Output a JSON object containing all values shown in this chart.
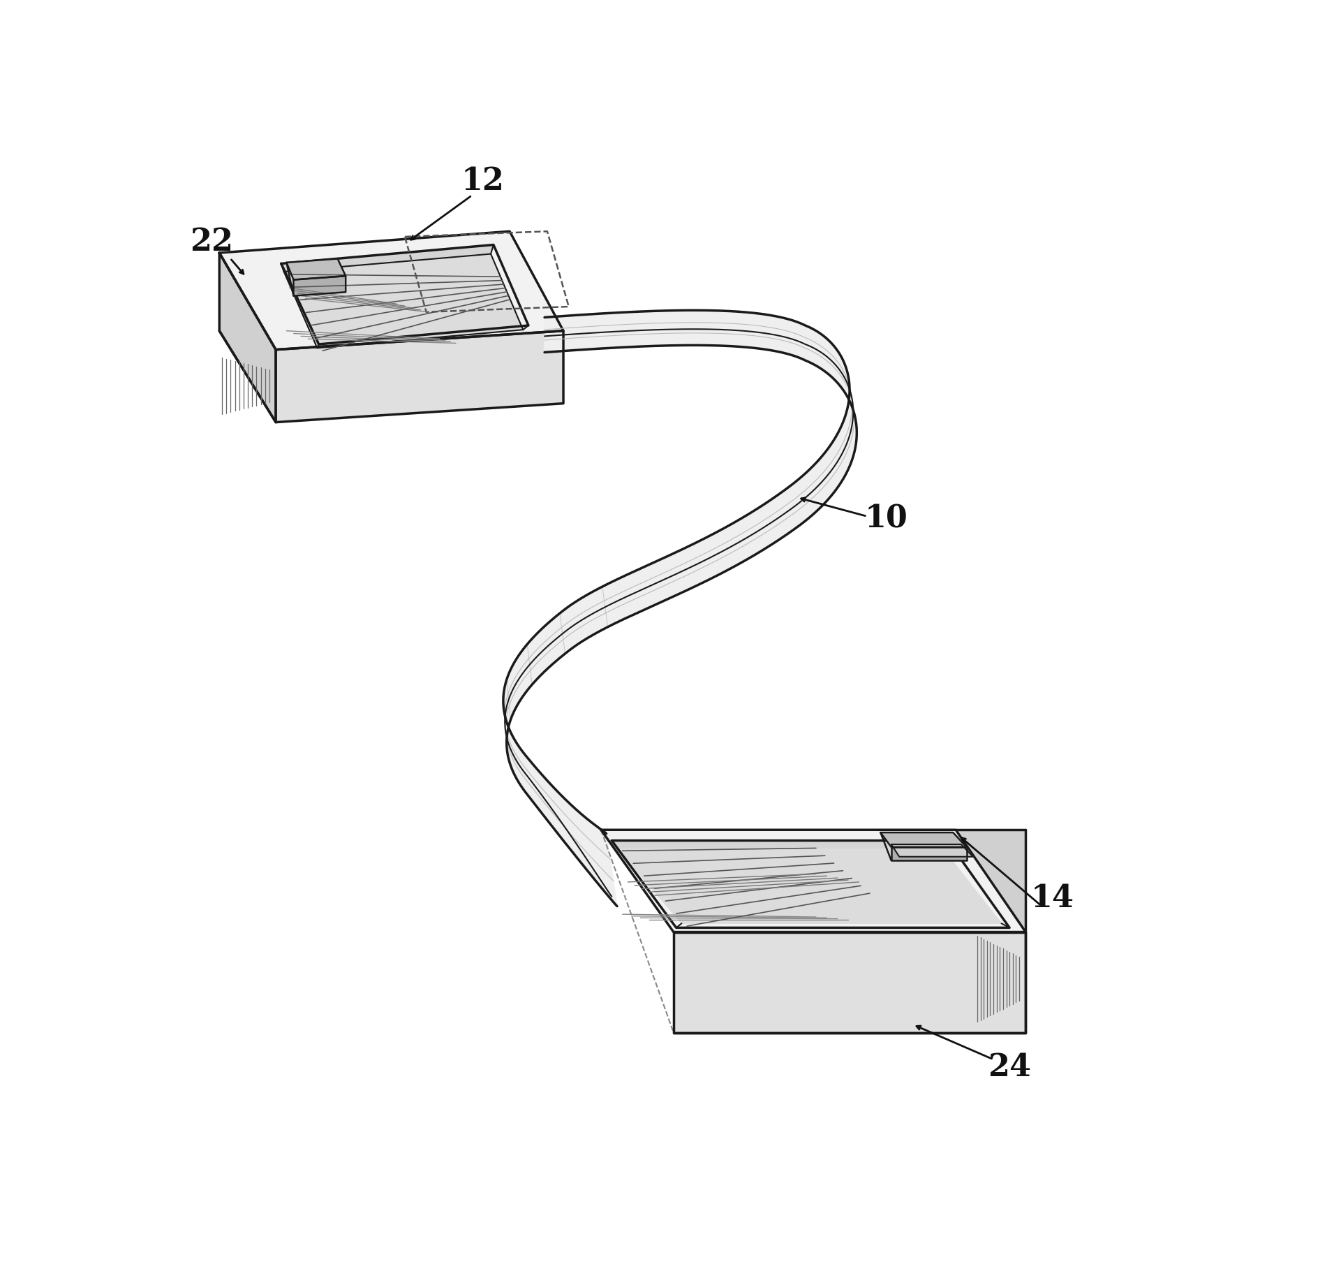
{
  "bg_color": "#ffffff",
  "line_color": "#1a1a1a",
  "line_width": 2.5,
  "fig_width": 19.21,
  "fig_height": 18.3,
  "font_size": 32
}
